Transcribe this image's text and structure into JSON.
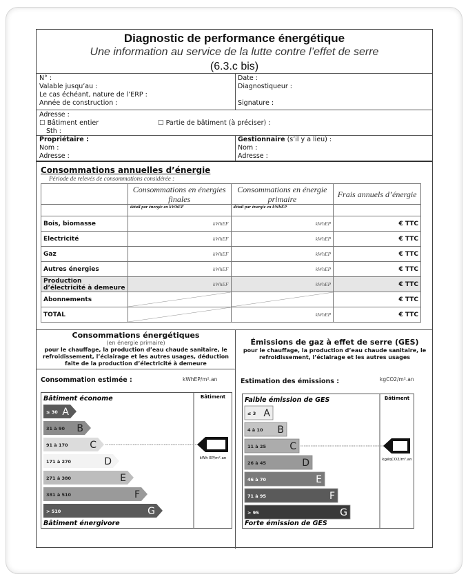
{
  "header": {
    "title": "Diagnostic de performance énergétique",
    "subtitle": "Une information au service de la lutte contre l’effet de serre",
    "version": "(6.3.c bis)"
  },
  "info": {
    "left": [
      "N° :",
      "Valable jusqu’au :",
      "Le cas échéant, nature de l’ERP :",
      "Année de construction :"
    ],
    "right": [
      "Date :",
      "Diagnostiqueur :",
      "Signature :"
    ]
  },
  "address": {
    "label": "Adresse :",
    "whole": "Bâtiment entier",
    "part": "Partie de bâtiment (à préciser) :",
    "sth": "Sth :"
  },
  "owner": {
    "title": "Propriétaire :",
    "name": "Nom :",
    "address": "Adresse :"
  },
  "manager": {
    "title": "Gestionnaire",
    "note": "(s’il y a lieu) :",
    "name": "Nom :",
    "address": "Adresse :"
  },
  "consumption": {
    "heading": "Consommations annuelles d’énergie",
    "period": "Période de relevés de consommations considérée :",
    "columns": [
      "Consommations en énergies finales",
      "Consommations en énergie primaire",
      "Frais annuels d’énergie"
    ],
    "subheaders": [
      "détail par énergie en kWhEF",
      "détail par énergie en kWhEP"
    ],
    "unit_ef": "kWhEF",
    "unit_ep": "kWhEP",
    "cost": "€ TTC",
    "rows": [
      "Bois, biomasse",
      "Electricité",
      "Gaz",
      "Autres énergies",
      "Production d’électricité à demeure",
      "Abonnements",
      "TOTAL"
    ]
  },
  "energy": {
    "title": "Consommations énergétiques",
    "subtitle": "(en énergie primaire)",
    "desc": "pour le chauffage, la production d’eau chaude sanitaire, le refroidissement, l’éclairage et les autres usages, déduction faite de la production d’électricité à demeure",
    "estimate_label": "Consommation estimée :",
    "estimate_unit": "kWhEP/m².an",
    "top": "Bâtiment économe",
    "bottom": "Bâtiment énergivore",
    "col": "Bâtiment",
    "marker_unit": "kWh EP/m².an",
    "marker_class": "C",
    "classes": [
      {
        "letter": "A",
        "range": "≤ 30",
        "color": "#5a5a5a"
      },
      {
        "letter": "B",
        "range": "31 à 90",
        "color": "#8c8c8c"
      },
      {
        "letter": "C",
        "range": "91 à 170",
        "color": "#dcdcdc"
      },
      {
        "letter": "D",
        "range": "171 à 270",
        "color": "#f3f3f3"
      },
      {
        "letter": "E",
        "range": "271 à 380",
        "color": "#bdbdbd"
      },
      {
        "letter": "F",
        "range": "381 à 510",
        "color": "#9a9a9a"
      },
      {
        "letter": "G",
        "range": "> 510",
        "color": "#5a5a5a"
      }
    ]
  },
  "ges": {
    "title": "Émissions de gaz à effet de serre (GES)",
    "desc": "pour le chauffage, la production d’eau chaude sanitaire, le refroidissement, l’éclairage et les autres usages",
    "estimate_label": "Estimation des émissions :",
    "estimate_unit": "kgCO2/m².an",
    "top": "Faible émission de GES",
    "bottom": "Forte émission de GES",
    "col": "Bâtiment",
    "marker_unit": "kgéqCO2/m².an",
    "marker_class": "C",
    "classes": [
      {
        "letter": "A",
        "range": "≤ 3",
        "color": "#eeeeee"
      },
      {
        "letter": "B",
        "range": "4 à 10",
        "color": "#c4c4c4"
      },
      {
        "letter": "C",
        "range": "11 à 25",
        "color": "#acacac"
      },
      {
        "letter": "D",
        "range": "26 à 45",
        "color": "#999999"
      },
      {
        "letter": "E",
        "range": "46 à 70",
        "color": "#7a7a7a"
      },
      {
        "letter": "F",
        "range": "71 à 95",
        "color": "#5a5a5a"
      },
      {
        "letter": "G",
        "range": "> 95",
        "color": "#3a3a3a"
      }
    ]
  }
}
